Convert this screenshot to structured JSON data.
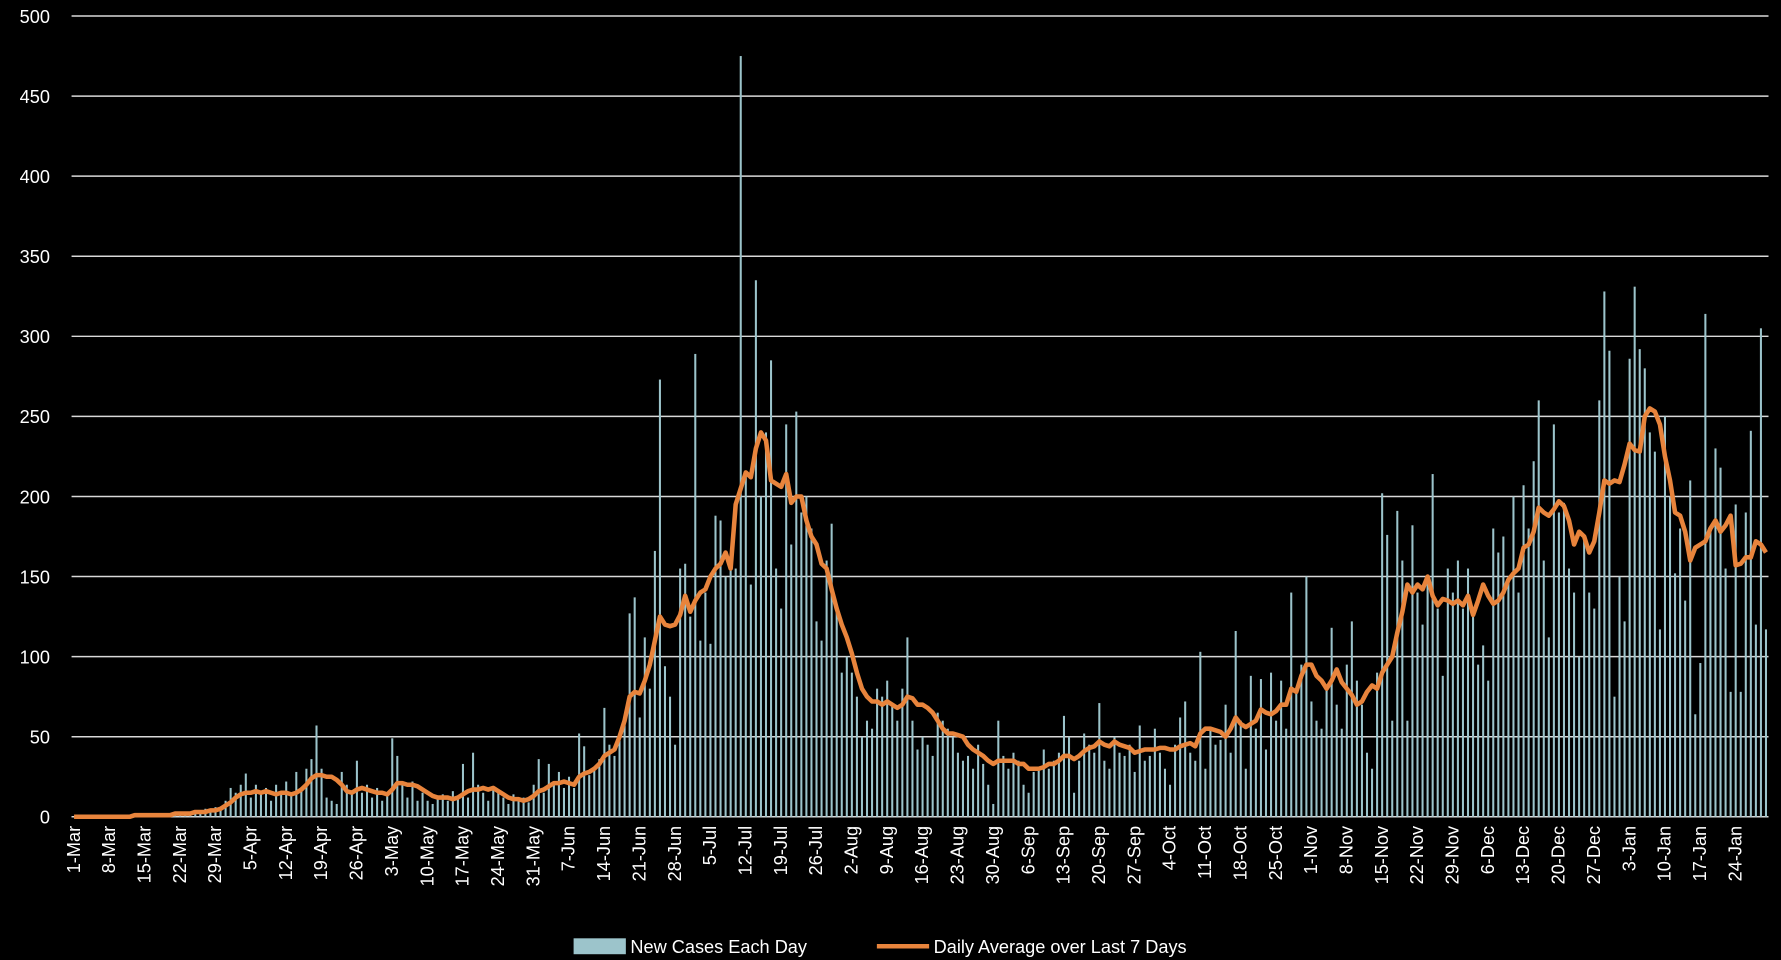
{
  "chart_data": {
    "type": "bar",
    "categories": [
      "1-Mar",
      null,
      null,
      null,
      null,
      null,
      null,
      "8-Mar",
      null,
      null,
      null,
      null,
      null,
      null,
      "15-Mar",
      null,
      null,
      null,
      null,
      null,
      null,
      "22-Mar",
      null,
      null,
      null,
      null,
      null,
      null,
      "29-Mar",
      null,
      null,
      null,
      null,
      null,
      null,
      "5-Apr",
      null,
      null,
      null,
      null,
      null,
      null,
      "12-Apr",
      null,
      null,
      null,
      null,
      null,
      null,
      "19-Apr",
      null,
      null,
      null,
      null,
      null,
      null,
      "26-Apr",
      null,
      null,
      null,
      null,
      null,
      null,
      "3-May",
      null,
      null,
      null,
      null,
      null,
      null,
      "10-May",
      null,
      null,
      null,
      null,
      null,
      null,
      "17-May",
      null,
      null,
      null,
      null,
      null,
      null,
      "24-May",
      null,
      null,
      null,
      null,
      null,
      null,
      "31-May",
      null,
      null,
      null,
      null,
      null,
      null,
      "7-Jun",
      null,
      null,
      null,
      null,
      null,
      null,
      "14-Jun",
      null,
      null,
      null,
      null,
      null,
      null,
      "21-Jun",
      null,
      null,
      null,
      null,
      null,
      null,
      "28-Jun",
      null,
      null,
      null,
      null,
      null,
      null,
      "5-Jul",
      null,
      null,
      null,
      null,
      null,
      null,
      "12-Jul",
      null,
      null,
      null,
      null,
      null,
      null,
      "19-Jul",
      null,
      null,
      null,
      null,
      null,
      null,
      "26-Jul",
      null,
      null,
      null,
      null,
      null,
      null,
      "2-Aug",
      null,
      null,
      null,
      null,
      null,
      null,
      "9-Aug",
      null,
      null,
      null,
      null,
      null,
      null,
      "16-Aug",
      null,
      null,
      null,
      null,
      null,
      null,
      "23-Aug",
      null,
      null,
      null,
      null,
      null,
      null,
      "30-Aug",
      null,
      null,
      null,
      null,
      null,
      null,
      "6-Sep",
      null,
      null,
      null,
      null,
      null,
      null,
      "13-Sep",
      null,
      null,
      null,
      null,
      null,
      null,
      "20-Sep",
      null,
      null,
      null,
      null,
      null,
      null,
      "27-Sep",
      null,
      null,
      null,
      null,
      null,
      null,
      "4-Oct",
      null,
      null,
      null,
      null,
      null,
      null,
      "11-Oct",
      null,
      null,
      null,
      null,
      null,
      null,
      "18-Oct",
      null,
      null,
      null,
      null,
      null,
      null,
      "25-Oct",
      null,
      null,
      null,
      null,
      null,
      null,
      "1-Nov",
      null,
      null,
      null,
      null,
      null,
      null,
      "8-Nov",
      null,
      null,
      null,
      null,
      null,
      null,
      "15-Nov",
      null,
      null,
      null,
      null,
      null,
      null,
      "22-Nov",
      null,
      null,
      null,
      null,
      null,
      null,
      "29-Nov",
      null,
      null,
      null,
      null,
      null,
      null,
      "6-Dec",
      null,
      null,
      null,
      null,
      null,
      null,
      "13-Dec",
      null,
      null,
      null,
      null,
      null,
      null,
      "20-Dec",
      null,
      null,
      null,
      null,
      null,
      null,
      "27-Dec",
      null,
      null,
      null,
      null,
      null,
      null,
      "3-Jan",
      null,
      null,
      null,
      null,
      null,
      null,
      "10-Jan",
      null,
      null,
      null,
      null,
      null,
      null,
      "17-Jan",
      null,
      null,
      null,
      null,
      null,
      null,
      "24-Jan",
      null,
      null,
      null,
      null,
      null,
      null
    ],
    "series": [
      {
        "name": "New Cases Each Day",
        "type": "bar",
        "color": "#9cc4cb",
        "values": [
          0,
          0,
          0,
          0,
          0,
          0,
          0,
          0,
          0,
          0,
          1,
          0,
          1,
          1,
          1,
          1,
          2,
          1,
          2,
          1,
          2,
          2,
          3,
          2,
          4,
          3,
          5,
          4,
          6,
          5,
          10,
          18,
          15,
          20,
          27,
          12,
          20,
          15,
          18,
          10,
          20,
          16,
          22,
          14,
          28,
          18,
          30,
          36,
          57,
          30,
          12,
          10,
          8,
          28,
          20,
          14,
          35,
          15,
          20,
          12,
          18,
          10,
          14,
          49,
          38,
          20,
          12,
          22,
          10,
          15,
          10,
          8,
          12,
          14,
          10,
          16,
          12,
          33,
          12,
          40,
          20,
          15,
          10,
          18,
          16,
          12,
          8,
          14,
          10,
          12,
          9,
          20,
          36,
          15,
          33,
          22,
          28,
          18,
          25,
          18,
          52,
          44,
          26,
          30,
          36,
          68,
          45,
          38,
          50,
          60,
          127,
          137,
          62,
          112,
          80,
          166,
          273,
          94,
          75,
          45,
          155,
          158,
          125,
          289,
          110,
          140,
          108,
          188,
          185,
          150,
          162,
          155,
          475,
          215,
          145,
          335,
          200,
          240,
          285,
          155,
          130,
          245,
          170,
          253,
          190,
          200,
          180,
          122,
          110,
          160,
          183,
          130,
          90,
          100,
          90,
          75,
          50,
          60,
          55,
          80,
          75,
          85,
          70,
          60,
          80,
          112,
          60,
          42,
          50,
          45,
          38,
          65,
          60,
          55,
          50,
          40,
          35,
          38,
          30,
          45,
          33,
          20,
          8,
          60,
          38,
          30,
          40,
          35,
          20,
          15,
          28,
          30,
          42,
          30,
          35,
          40,
          63,
          50,
          15,
          35,
          52,
          45,
          40,
          71,
          35,
          30,
          50,
          40,
          38,
          45,
          28,
          57,
          35,
          38,
          55,
          40,
          30,
          20,
          45,
          62,
          72,
          40,
          35,
          103,
          30,
          55,
          45,
          48,
          70,
          40,
          116,
          60,
          30,
          88,
          55,
          86,
          42,
          90,
          60,
          85,
          55,
          140,
          80,
          95,
          150,
          72,
          60,
          55,
          80,
          118,
          70,
          55,
          95,
          122,
          85,
          70,
          40,
          30,
          90,
          202,
          176,
          60,
          191,
          160,
          60,
          182,
          140,
          120,
          150,
          214,
          130,
          88,
          155,
          140,
          160,
          130,
          155,
          125,
          95,
          107,
          85,
          180,
          165,
          175,
          150,
          200,
          140,
          207,
          180,
          222,
          260,
          160,
          112,
          245,
          190,
          196,
          155,
          140,
          100,
          175,
          140,
          130,
          260,
          328,
          291,
          75,
          150,
          122,
          286,
          331,
          292,
          280,
          240,
          228,
          117,
          250,
          200,
          152,
          180,
          135,
          210,
          64,
          96,
          314,
          180,
          230,
          218,
          155,
          78,
          195,
          78,
          190,
          241,
          120,
          305,
          117
        ]
      },
      {
        "name": "Daily Average over Last 7 Days",
        "type": "line",
        "color": "#e8843c",
        "values": [
          0,
          0,
          0,
          0,
          0,
          0,
          0,
          0,
          0,
          0,
          0,
          0,
          1,
          1,
          1,
          1,
          1,
          1,
          1,
          1,
          2,
          2,
          2,
          2,
          3,
          3,
          3,
          4,
          4,
          5,
          7,
          9,
          12,
          14,
          15,
          15,
          16,
          15,
          16,
          15,
          14,
          15,
          15,
          14,
          15,
          17,
          20,
          24,
          26,
          26,
          25,
          25,
          23,
          20,
          16,
          15,
          17,
          18,
          17,
          16,
          15,
          15,
          14,
          17,
          21,
          21,
          20,
          20,
          19,
          17,
          15,
          13,
          12,
          12,
          12,
          11,
          12,
          14,
          16,
          17,
          17,
          18,
          17,
          18,
          16,
          14,
          12,
          11,
          11,
          10,
          11,
          13,
          16,
          17,
          19,
          21,
          21,
          22,
          21,
          20,
          25,
          27,
          28,
          30,
          33,
          38,
          40,
          42,
          50,
          60,
          75,
          78,
          77,
          85,
          95,
          110,
          125,
          120,
          119,
          120,
          126,
          138,
          128,
          135,
          140,
          142,
          150,
          155,
          158,
          165,
          155,
          195,
          205,
          215,
          212,
          230,
          240,
          235,
          210,
          208,
          206,
          214,
          196,
          200,
          200,
          185,
          175,
          170,
          158,
          155,
          142,
          130,
          120,
          112,
          102,
          90,
          80,
          75,
          72,
          72,
          70,
          72,
          70,
          68,
          70,
          75,
          74,
          70,
          70,
          68,
          65,
          60,
          55,
          52,
          52,
          51,
          50,
          45,
          42,
          40,
          38,
          35,
          33,
          35,
          35,
          35,
          35,
          33,
          33,
          30,
          30,
          30,
          31,
          33,
          33,
          35,
          38,
          38,
          36,
          38,
          41,
          43,
          44,
          47,
          45,
          44,
          47,
          45,
          44,
          43,
          40,
          41,
          42,
          42,
          42,
          43,
          43,
          42,
          42,
          44,
          45,
          46,
          44,
          52,
          55,
          55,
          54,
          53,
          50,
          55,
          62,
          58,
          56,
          58,
          60,
          67,
          65,
          64,
          66,
          70,
          70,
          80,
          78,
          88,
          95,
          95,
          88,
          85,
          80,
          85,
          92,
          84,
          80,
          76,
          70,
          72,
          78,
          82,
          80,
          90,
          95,
          100,
          115,
          128,
          145,
          140,
          145,
          142,
          150,
          138,
          132,
          136,
          135,
          133,
          135,
          132,
          138,
          126,
          135,
          145,
          138,
          133,
          135,
          140,
          148,
          152,
          155,
          168,
          170,
          178,
          193,
          190,
          188,
          192,
          197,
          194,
          185,
          170,
          178,
          175,
          165,
          172,
          190,
          210,
          208,
          210,
          209,
          220,
          233,
          229,
          228,
          250,
          255,
          253,
          245,
          225,
          210,
          190,
          188,
          178,
          160,
          168,
          170,
          172,
          180,
          185,
          178,
          182,
          188,
          157,
          158,
          162,
          162,
          172,
          170,
          165
        ]
      }
    ],
    "ylim": [
      0,
      500
    ],
    "yticks": [
      0,
      50,
      100,
      150,
      200,
      250,
      300,
      350,
      400,
      450,
      500
    ],
    "grid": true,
    "legend": "bottom"
  }
}
